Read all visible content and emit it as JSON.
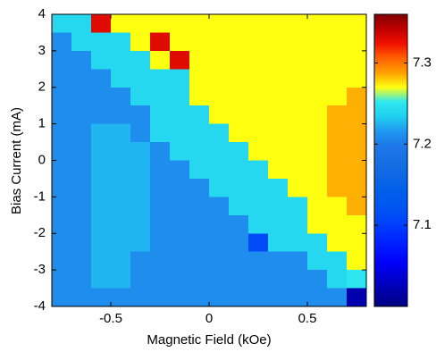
{
  "chart_data": {
    "type": "heatmap",
    "xlabel": "Magnetic Field (kOe)",
    "ylabel": "Bias Current (mA)",
    "x": [
      -0.75,
      -0.65,
      -0.55,
      -0.45,
      -0.35,
      -0.25,
      -0.15,
      -0.05,
      0.05,
      0.15,
      0.25,
      0.35,
      0.45,
      0.55,
      0.65,
      0.75
    ],
    "y": [
      3.75,
      3.25,
      2.75,
      2.25,
      1.75,
      1.25,
      0.75,
      0.25,
      -0.25,
      -0.75,
      -1.25,
      -1.75,
      -2.25,
      -2.75,
      -3.25,
      -3.75
    ],
    "values": [
      [
        7.24,
        7.24,
        7.33,
        7.27,
        7.27,
        7.27,
        7.27,
        7.27,
        7.27,
        7.27,
        7.27,
        7.27,
        7.27,
        7.27,
        7.27,
        7.27
      ],
      [
        7.21,
        7.24,
        7.24,
        7.24,
        7.27,
        7.33,
        7.27,
        7.27,
        7.27,
        7.27,
        7.27,
        7.27,
        7.27,
        7.27,
        7.27,
        7.27
      ],
      [
        7.21,
        7.21,
        7.24,
        7.24,
        7.24,
        7.27,
        7.33,
        7.27,
        7.27,
        7.27,
        7.27,
        7.27,
        7.27,
        7.27,
        7.27,
        7.27
      ],
      [
        7.21,
        7.21,
        7.21,
        7.24,
        7.24,
        7.24,
        7.24,
        7.27,
        7.27,
        7.27,
        7.27,
        7.27,
        7.27,
        7.27,
        7.27,
        7.27
      ],
      [
        7.21,
        7.21,
        7.21,
        7.21,
        7.24,
        7.24,
        7.24,
        7.27,
        7.27,
        7.27,
        7.27,
        7.27,
        7.27,
        7.27,
        7.27,
        7.285
      ],
      [
        7.21,
        7.21,
        7.21,
        7.21,
        7.21,
        7.24,
        7.24,
        7.24,
        7.27,
        7.27,
        7.27,
        7.27,
        7.27,
        7.27,
        7.285,
        7.285
      ],
      [
        7.21,
        7.21,
        7.225,
        7.225,
        7.21,
        7.24,
        7.24,
        7.24,
        7.24,
        7.27,
        7.27,
        7.27,
        7.27,
        7.27,
        7.285,
        7.285
      ],
      [
        7.21,
        7.21,
        7.225,
        7.225,
        7.225,
        7.21,
        7.24,
        7.24,
        7.24,
        7.24,
        7.27,
        7.27,
        7.27,
        7.27,
        7.285,
        7.285
      ],
      [
        7.21,
        7.21,
        7.225,
        7.225,
        7.225,
        7.21,
        7.21,
        7.24,
        7.24,
        7.24,
        7.24,
        7.27,
        7.27,
        7.27,
        7.285,
        7.285
      ],
      [
        7.21,
        7.21,
        7.225,
        7.225,
        7.225,
        7.21,
        7.21,
        7.21,
        7.24,
        7.24,
        7.24,
        7.24,
        7.27,
        7.27,
        7.285,
        7.285
      ],
      [
        7.21,
        7.21,
        7.225,
        7.225,
        7.225,
        7.21,
        7.21,
        7.21,
        7.21,
        7.24,
        7.24,
        7.24,
        7.24,
        7.27,
        7.27,
        7.285
      ],
      [
        7.21,
        7.21,
        7.225,
        7.225,
        7.225,
        7.21,
        7.21,
        7.21,
        7.21,
        7.21,
        7.24,
        7.24,
        7.24,
        7.27,
        7.27,
        7.27
      ],
      [
        7.21,
        7.21,
        7.225,
        7.225,
        7.225,
        7.21,
        7.21,
        7.21,
        7.21,
        7.21,
        7.11,
        7.24,
        7.24,
        7.24,
        7.27,
        7.27
      ],
      [
        7.21,
        7.21,
        7.225,
        7.225,
        7.21,
        7.21,
        7.21,
        7.21,
        7.21,
        7.21,
        7.21,
        7.21,
        7.21,
        7.24,
        7.24,
        7.27
      ],
      [
        7.21,
        7.21,
        7.225,
        7.225,
        7.21,
        7.21,
        7.21,
        7.21,
        7.21,
        7.21,
        7.21,
        7.21,
        7.21,
        7.21,
        7.24,
        7.25
      ],
      [
        7.21,
        7.21,
        7.21,
        7.21,
        7.21,
        7.21,
        7.21,
        7.21,
        7.21,
        7.21,
        7.21,
        7.21,
        7.21,
        7.21,
        7.21,
        7.02
      ]
    ],
    "xlim": [
      -0.8,
      0.8
    ],
    "ylim": [
      -4,
      4
    ],
    "xticks": [
      -0.5,
      0,
      0.5
    ],
    "yticks": [
      -4,
      -3,
      -2,
      -1,
      0,
      1,
      2,
      3,
      4
    ],
    "clim": [
      7.0,
      7.36
    ],
    "cticks": [
      7.1,
      7.2,
      7.3
    ],
    "colormap": [
      "#000080",
      "#0000a8",
      "#0000d0",
      "#0000f8",
      "#0018ff",
      "#0030ff",
      "#0048f8",
      "#0058f0",
      "#0060e8",
      "#1068e4",
      "#1870e4",
      "#1e78e8",
      "#2098f0",
      "#20d0f0",
      "#30e8f0",
      "#ffff10",
      "#ffa000",
      "#ff6000",
      "#f01000",
      "#c00000",
      "#800000"
    ]
  }
}
